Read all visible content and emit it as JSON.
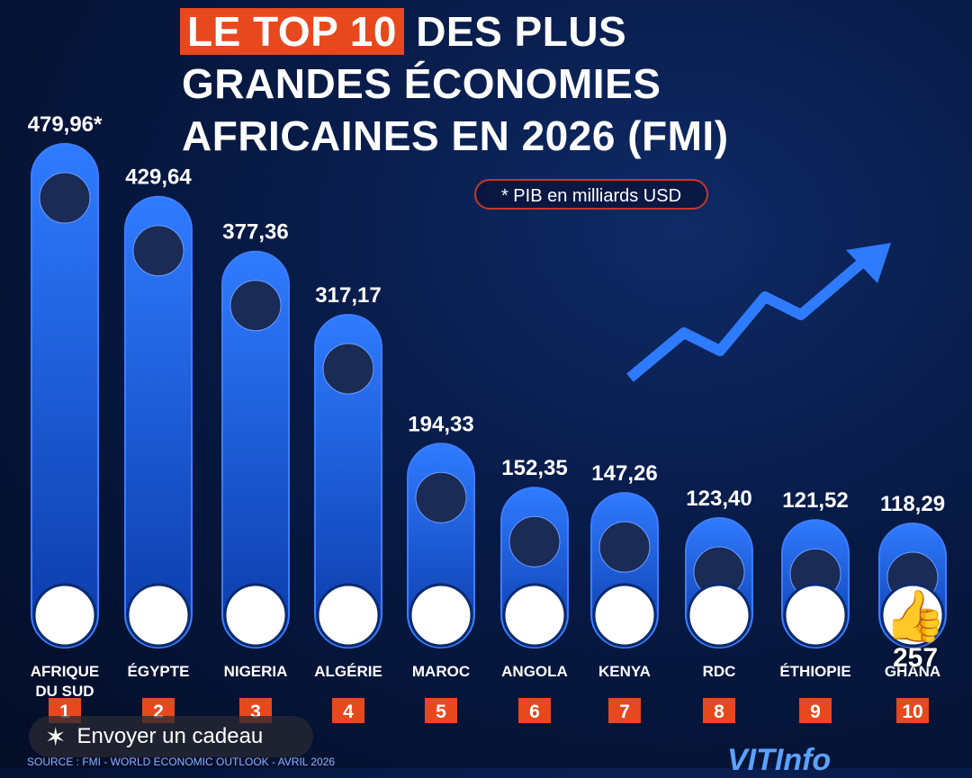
{
  "header": {
    "title_highlight": "LE TOP 10",
    "title_rest": "DES PLUS",
    "title_line2": "GRANDES ÉCONOMIES",
    "title_line3": "AFRICAINES EN 2026 (FMI)",
    "note": "* PIB en milliards USD"
  },
  "chart_data": {
    "type": "bar",
    "categories": [
      "AFRIQUE DU SUD",
      "ÉGYPTE",
      "NIGERIA",
      "ALGÉRIE",
      "MAROC",
      "ANGOLA",
      "KENYA",
      "RDC",
      "ÉTHIOPIE",
      "GHANA"
    ],
    "category_lines": [
      [
        "AFRIQUE",
        "DU SUD"
      ],
      [
        "ÉGYPTE"
      ],
      [
        "NIGERIA"
      ],
      [
        "ALGÉRIE"
      ],
      [
        "MAROC"
      ],
      [
        "ANGOLA"
      ],
      [
        "KENYA"
      ],
      [
        "RDC"
      ],
      [
        "ÉTHIOPIE"
      ],
      [
        "GHANA"
      ]
    ],
    "values": [
      479.96,
      429.64,
      377.36,
      317.17,
      194.33,
      152.35,
      147.26,
      123.4,
      121.52,
      118.29
    ],
    "value_labels": [
      "479,96*",
      "429,64",
      "377,36",
      "317,17",
      "194,33",
      "152,35",
      "147,26",
      "123,40",
      "121,52",
      "118,29"
    ],
    "ranks": [
      "1",
      "2",
      "3",
      "4",
      "5",
      "6",
      "7",
      "8",
      "9",
      "10"
    ],
    "unit": "PIB en milliards USD",
    "title": "LE TOP 10 DES PLUS GRANDES ÉCONOMIES AFRICAINES EN 2026 (FMI)",
    "bar_color": "#1f5fe0",
    "rank_color": "#e8481e"
  },
  "overlay": {
    "gift_label": "Envoyer un cadeau",
    "gift_icon": "gift-icon",
    "like_icon": "thumbs-up-icon",
    "like_count": "257"
  },
  "footer": {
    "source": "SOURCE : FMI - WORLD ECONOMIC OUTLOOK - AVRIL 2026",
    "logo": "VITInfo"
  }
}
